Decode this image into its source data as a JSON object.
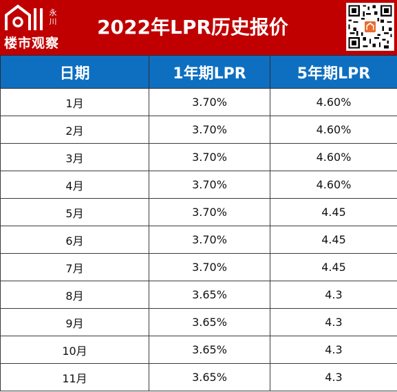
{
  "banner": {
    "logo_small": "永川",
    "logo_text": "楼市观察",
    "title": "2022年LPR历史报价"
  },
  "colors": {
    "banner_bg": "#c00000",
    "header_bg": "#0e6fc1"
  },
  "table": {
    "headers": [
      "日期",
      "1年期LPR",
      "5年期LPR"
    ],
    "rows": [
      [
        "1月",
        "3.70%",
        "4.60%"
      ],
      [
        "2月",
        "3.70%",
        "4.60%"
      ],
      [
        "3月",
        "3.70%",
        "4.60%"
      ],
      [
        "4月",
        "3.70%",
        "4.60%"
      ],
      [
        "5月",
        "3.70%",
        "4.45"
      ],
      [
        "6月",
        "3.70%",
        "4.45"
      ],
      [
        "7月",
        "3.70%",
        "4.45"
      ],
      [
        "8月",
        "3.65%",
        "4.3"
      ],
      [
        "9月",
        "3.65%",
        "4.3"
      ],
      [
        "10月",
        "3.65%",
        "4.3"
      ],
      [
        "11月",
        "3.65%",
        "4.3"
      ]
    ]
  }
}
